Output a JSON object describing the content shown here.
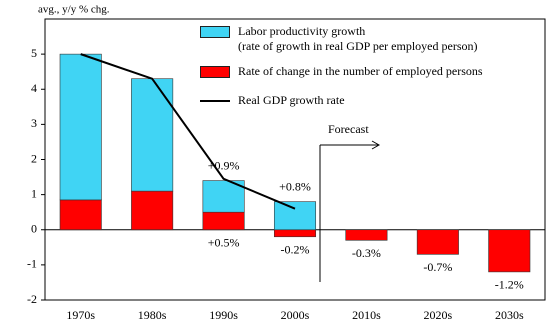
{
  "chart_data": {
    "type": "bar",
    "y_axis_label": "avg., y/y % chg.",
    "categories": [
      "1970s",
      "1980s",
      "1990s",
      "2000s",
      "2010s",
      "2020s",
      "2030s"
    ],
    "series": [
      {
        "name": "Rate of change in the number of employed persons",
        "color": "#ff0000",
        "values": [
          0.85,
          1.1,
          0.5,
          -0.2,
          -0.3,
          -0.7,
          -1.2
        ],
        "value_labels": [
          null,
          null,
          "+0.5%",
          "-0.2%",
          "-0.3%",
          "-0.7%",
          "-1.2%"
        ]
      },
      {
        "name": "Labor productivity growth\n(rate of growth in real GDP per employed person)",
        "color": "#40d4f4",
        "values": [
          4.15,
          3.2,
          0.9,
          0.8,
          null,
          null,
          null
        ],
        "value_labels": [
          null,
          null,
          "+0.9%",
          "+0.8%",
          null,
          null,
          null
        ]
      },
      {
        "name": "Real GDP growth rate",
        "type": "line",
        "color": "#000000",
        "values": [
          5.0,
          4.3,
          1.45,
          0.6,
          null,
          null,
          null
        ]
      }
    ],
    "annotation": "Forecast",
    "ylim": [
      -2,
      6
    ],
    "yticks": [
      -2,
      -1,
      0,
      1,
      2,
      3,
      4,
      5
    ]
  }
}
